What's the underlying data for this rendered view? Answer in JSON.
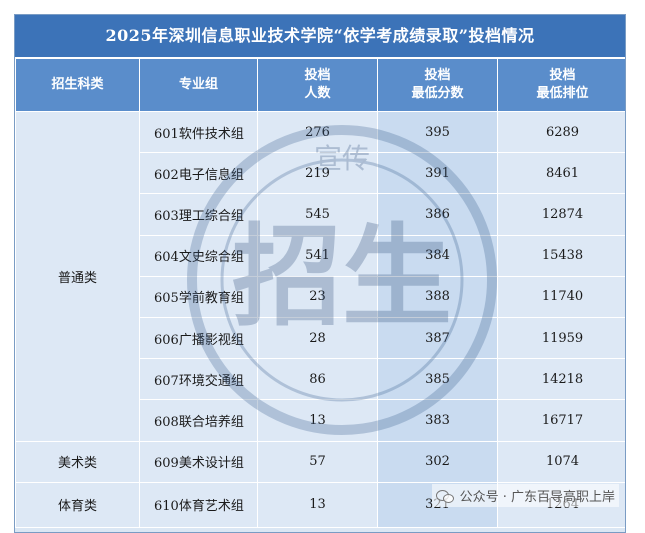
{
  "title": "2025年深圳信息职业技术学院“依学考成绩录取”投档情况",
  "headers": {
    "category": "招生科类",
    "group": "专业组",
    "count_line1": "投档",
    "count_line2": "人数",
    "min_score_line1": "投档",
    "min_score_line2": "最低分数",
    "min_rank_line1": "投档",
    "min_rank_line2": "最低排位"
  },
  "categories": {
    "general": "普通类",
    "arts": "美术类",
    "sports": "体育类"
  },
  "rows": [
    {
      "group": "601软件技术组",
      "count": "276",
      "min_score": "395",
      "min_rank": "6289"
    },
    {
      "group": "602电子信息组",
      "count": "219",
      "min_score": "391",
      "min_rank": "8461"
    },
    {
      "group": "603理工综合组",
      "count": "545",
      "min_score": "386",
      "min_rank": "12874"
    },
    {
      "group": "604文史综合组",
      "count": "541",
      "min_score": "384",
      "min_rank": "15438"
    },
    {
      "group": "605学前教育组",
      "count": "23",
      "min_score": "388",
      "min_rank": "11740"
    },
    {
      "group": "606广播影视组",
      "count": "28",
      "min_score": "387",
      "min_rank": "11959"
    },
    {
      "group": "607环境交通组",
      "count": "86",
      "min_score": "385",
      "min_rank": "14218"
    },
    {
      "group": "608联合培养组",
      "count": "13",
      "min_score": "383",
      "min_rank": "16717"
    },
    {
      "group": "609美术设计组",
      "count": "57",
      "min_score": "302",
      "min_rank": "1074"
    },
    {
      "group": "610体育艺术组",
      "count": "13",
      "min_score": "321",
      "min_rank": "1264"
    }
  ],
  "seal": {
    "large_text": "招生",
    "ring_text": "宣传"
  },
  "watermark": {
    "icon": "wechat-icon",
    "text": "公众号 · 广东百导高职上岸"
  },
  "colors": {
    "title_bg": "#3c73b8",
    "header_bg": "#5a8dcb",
    "cell_bg": "#dde8f5",
    "highlight_col_bg": "#c9dbf0"
  }
}
